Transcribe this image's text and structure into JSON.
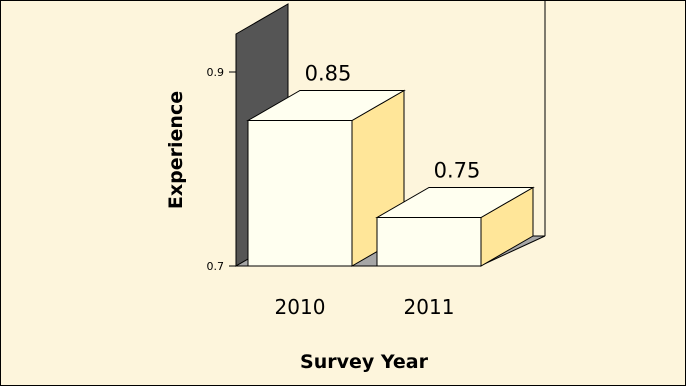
{
  "chart_data": {
    "type": "bar",
    "title": "",
    "xlabel": "Survey Year",
    "ylabel": "Experience",
    "categories": [
      "2010",
      "2011"
    ],
    "values": [
      0.85,
      0.75
    ],
    "data_labels": [
      "0.85",
      "0.75"
    ],
    "ylim": [
      0.7,
      1.0
    ],
    "y_ticks": [
      0.7,
      0.9
    ],
    "y_tick_labels": [
      "0.7",
      "0.9"
    ],
    "grid": false,
    "legend": "none",
    "colors": {
      "background": "#fdf5dc",
      "bar_front": "#fffff0",
      "bar_side": "#ffe699",
      "bar_top": "#fffff0",
      "wall": "#555555",
      "floor": "#a6a6a6",
      "border": "#000000"
    }
  }
}
